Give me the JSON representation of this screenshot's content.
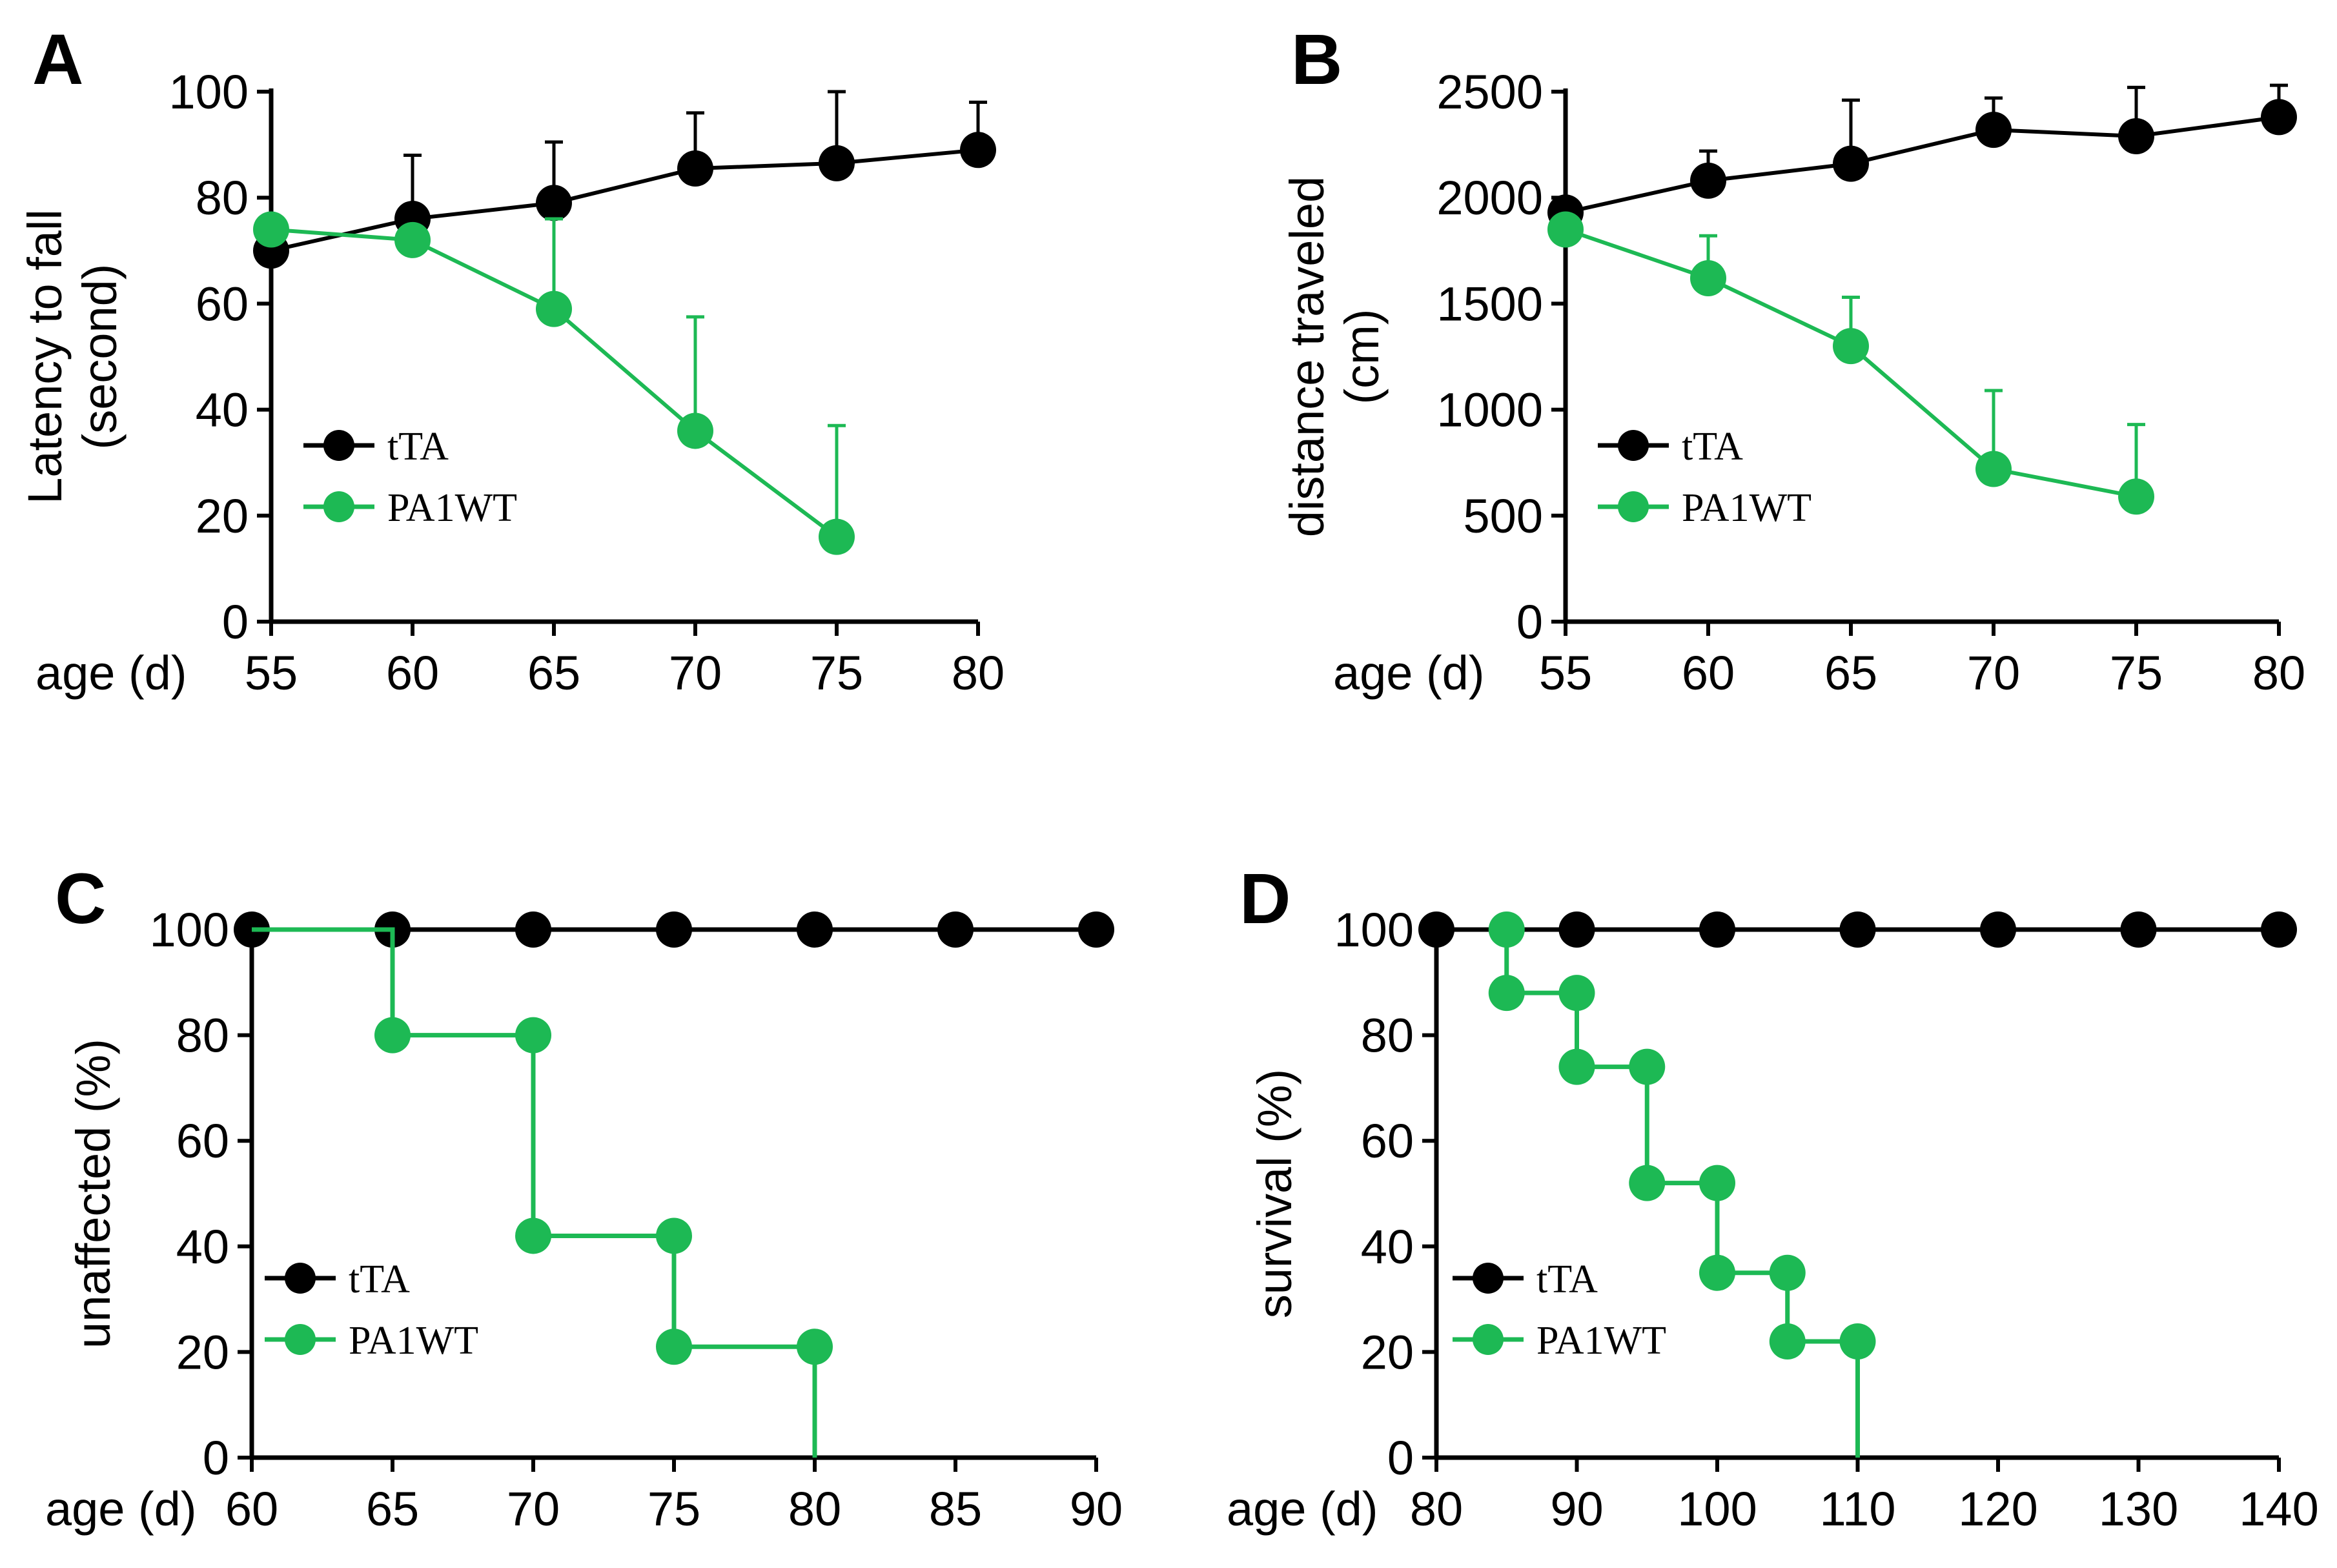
{
  "colors": {
    "tTA": "#000000",
    "PA1WT": "#1db954"
  },
  "chart_data": [
    {
      "panel": "A",
      "type": "line",
      "ylabel_line1": "Latency to fall",
      "ylabel_line2": "(second)",
      "xlabel": "age (d)",
      "xlim": [
        55,
        80
      ],
      "ylim": [
        0,
        100
      ],
      "xticks": [
        "55",
        "60",
        "65",
        "70",
        "75",
        "80"
      ],
      "yticks": [
        "0",
        "20",
        "40",
        "60",
        "80",
        "100"
      ],
      "legend": [
        "tTA",
        "PA1WT"
      ],
      "legend_position": "lower-left",
      "series": [
        {
          "name": "tTA",
          "x": [
            55,
            60,
            65,
            70,
            75,
            80
          ],
          "y": [
            70,
            76,
            79,
            85.5,
            86.5,
            89
          ],
          "err": [
            0,
            12,
            11.5,
            10.5,
            13.5,
            9
          ]
        },
        {
          "name": "PA1WT",
          "x": [
            55,
            60,
            65,
            70,
            75
          ],
          "y": [
            74,
            72,
            59,
            36,
            16
          ],
          "err": [
            0,
            0,
            17,
            21.5,
            21
          ]
        }
      ]
    },
    {
      "panel": "B",
      "type": "line",
      "ylabel_line1": "distance traveled",
      "ylabel_line2": "(cm)",
      "xlabel": "age (d)",
      "xlim": [
        55,
        80
      ],
      "ylim": [
        0,
        2500
      ],
      "xticks": [
        "55",
        "60",
        "65",
        "70",
        "75",
        "80"
      ],
      "yticks": [
        "0",
        "500",
        "1000",
        "1500",
        "2000",
        "2500"
      ],
      "legend": [
        "tTA",
        "PA1WT"
      ],
      "legend_position": "lower-left",
      "series": [
        {
          "name": "tTA",
          "x": [
            55,
            60,
            65,
            70,
            75,
            80
          ],
          "y": [
            1930,
            2080,
            2160,
            2320,
            2290,
            2380
          ],
          "err": [
            0,
            140,
            300,
            150,
            230,
            150
          ]
        },
        {
          "name": "PA1WT",
          "x": [
            55,
            60,
            65,
            70,
            75
          ],
          "y": [
            1850,
            1620,
            1300,
            720,
            590
          ],
          "err": [
            0,
            200,
            230,
            370,
            340
          ]
        }
      ]
    },
    {
      "panel": "C",
      "type": "line",
      "step": true,
      "ylabel_line1": "unaffected (%)",
      "xlabel": "age (d)",
      "xlim": [
        60,
        90
      ],
      "ylim": [
        0,
        100
      ],
      "xticks": [
        "60",
        "65",
        "70",
        "75",
        "80",
        "85",
        "90"
      ],
      "yticks": [
        "0",
        "20",
        "40",
        "60",
        "80",
        "100"
      ],
      "legend": [
        "tTA",
        "PA1WT"
      ],
      "legend_position": "lower-left",
      "series": [
        {
          "name": "tTA",
          "x": [
            60,
            65,
            70,
            75,
            80,
            85,
            90
          ],
          "y": [
            100,
            100,
            100,
            100,
            100,
            100,
            100
          ]
        },
        {
          "name": "PA1WT",
          "x": [
            65,
            70,
            70,
            75,
            75,
            80
          ],
          "y": [
            80,
            80,
            42,
            42,
            21,
            21
          ],
          "step_path": [
            [
              60,
              100
            ],
            [
              65,
              100
            ],
            [
              65,
              80
            ],
            [
              70,
              80
            ],
            [
              70,
              42
            ],
            [
              75,
              42
            ],
            [
              75,
              21
            ],
            [
              80,
              21
            ],
            [
              80,
              0
            ]
          ]
        }
      ]
    },
    {
      "panel": "D",
      "type": "line",
      "step": true,
      "ylabel_line1": "survival (%)",
      "xlabel": "age (d)",
      "xlim": [
        80,
        140
      ],
      "ylim": [
        0,
        100
      ],
      "xticks": [
        "80",
        "90",
        "100",
        "110",
        "120",
        "130",
        "140"
      ],
      "yticks": [
        "0",
        "20",
        "40",
        "60",
        "80",
        "100"
      ],
      "legend": [
        "tTA",
        "PA1WT"
      ],
      "legend_position": "lower-left",
      "series": [
        {
          "name": "tTA",
          "x": [
            80,
            90,
            100,
            110,
            120,
            130,
            140
          ],
          "y": [
            100,
            100,
            100,
            100,
            100,
            100,
            100
          ]
        },
        {
          "name": "PA1WT",
          "x": [
            85,
            85,
            90,
            90,
            95,
            95,
            100,
            100,
            105,
            105,
            110
          ],
          "y": [
            100,
            88,
            88,
            74,
            74,
            52,
            52,
            35,
            35,
            22,
            22
          ],
          "step_path": [
            [
              85,
              100
            ],
            [
              85,
              88
            ],
            [
              90,
              88
            ],
            [
              90,
              74
            ],
            [
              95,
              74
            ],
            [
              95,
              52
            ],
            [
              100,
              52
            ],
            [
              100,
              35
            ],
            [
              105,
              35
            ],
            [
              105,
              22
            ],
            [
              110,
              22
            ],
            [
              110,
              0
            ]
          ]
        }
      ]
    }
  ]
}
